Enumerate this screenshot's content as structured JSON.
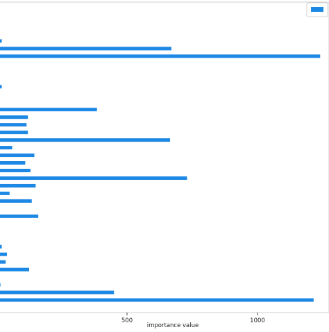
{
  "chart_data": {
    "type": "bar",
    "orientation": "horizontal",
    "title": "",
    "xlabel": "importance value",
    "ylabel": "",
    "xlim": [
      -25,
      1250
    ],
    "xticks": [
      500,
      1000
    ],
    "xtick_labels": [
      "500",
      "1000"
    ],
    "grid": false,
    "legend": {
      "placement": "top-right",
      "entries": [
        ""
      ]
    },
    "bar_color": "#1e88e5",
    "values": [
      -10,
      20,
      670,
      1240,
      0,
      0,
      5,
      20,
      10,
      -10,
      385,
      120,
      115,
      120,
      665,
      60,
      145,
      110,
      130,
      730,
      150,
      50,
      135,
      10,
      160,
      5,
      5,
      -5,
      20,
      40,
      35,
      125,
      0,
      15,
      450,
      1215
    ]
  }
}
